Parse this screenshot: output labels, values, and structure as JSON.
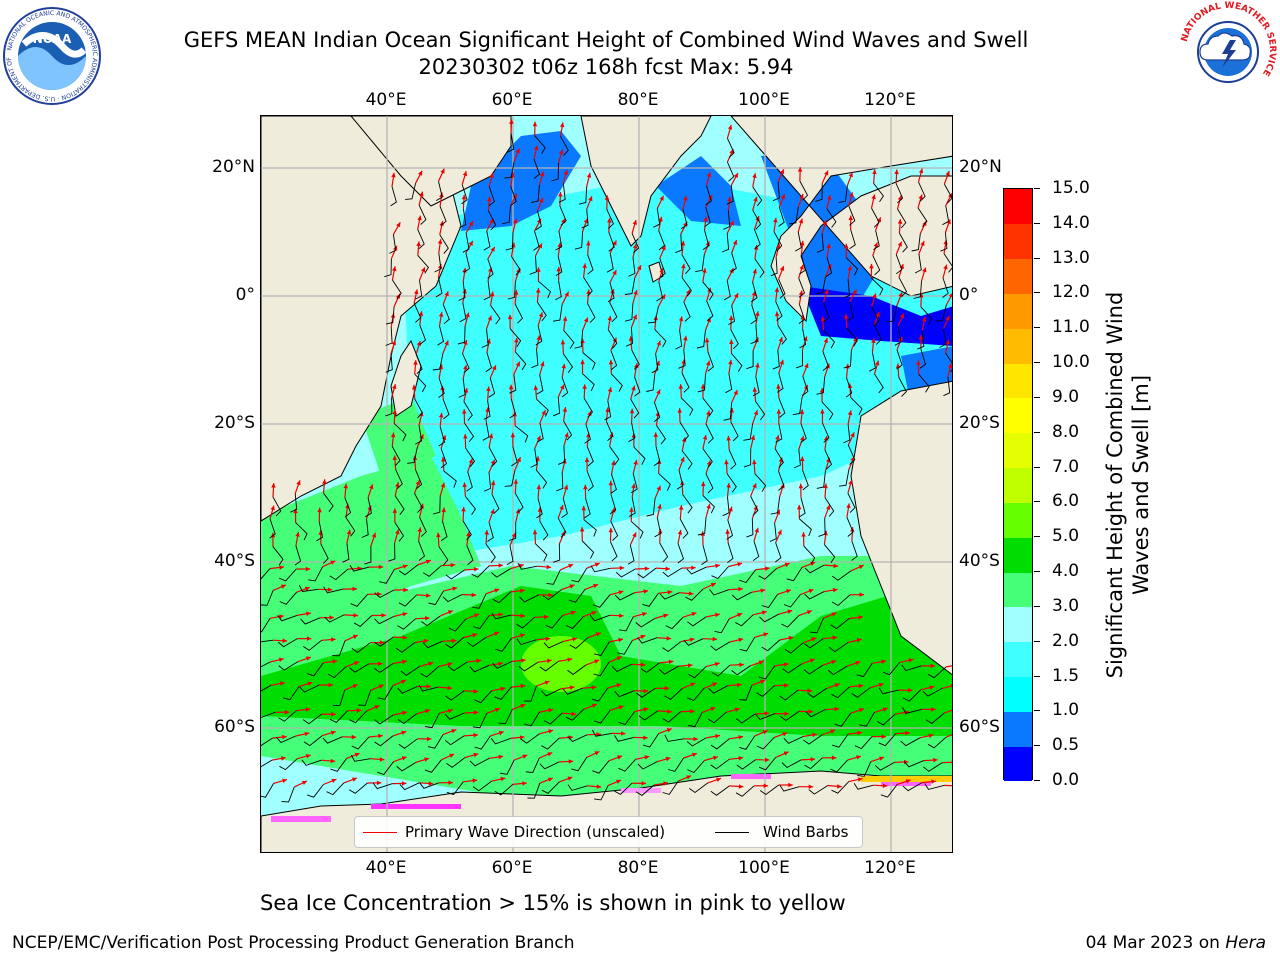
{
  "title": {
    "line1": "GEFS MEAN Indian Ocean Significant Height of Combined Wind Waves and Swell",
    "line2": "20230302 t06z 168h fcst   Max: 5.94"
  },
  "axes": {
    "lon_labels": [
      "40°E",
      "60°E",
      "80°E",
      "100°E",
      "120°E"
    ],
    "lat_labels_left": [
      "20°N",
      "0°",
      "20°S",
      "40°S",
      "60°S"
    ],
    "lat_labels_right": [
      "20°N",
      "0°",
      "20°S",
      "40°S",
      "60°S"
    ]
  },
  "chart_data": {
    "type": "heatmap",
    "title": "GEFS MEAN Indian Ocean Significant Height of Combined Wind Waves and Swell",
    "max_value": 5.94,
    "lon_ticks": [
      40,
      60,
      80,
      100,
      120
    ],
    "lat_ticks": [
      20,
      0,
      -20,
      -40,
      -60
    ],
    "colorbar": {
      "label": "Significant Height of Combined Wind Waves and Swell [m]",
      "levels": [
        0.0,
        0.5,
        1.0,
        1.5,
        2.0,
        3.0,
        4.0,
        5.0,
        6.0,
        7.0,
        8.0,
        9.0,
        10.0,
        11.0,
        12.0,
        13.0,
        14.0,
        15.0
      ],
      "level_labels": [
        "0.0",
        "0.5",
        "1.0",
        "1.5",
        "2.0",
        "3.0",
        "4.0",
        "5.0",
        "6.0",
        "7.0",
        "8.0",
        "9.0",
        "10.0",
        "11.0",
        "12.0",
        "13.0",
        "14.0",
        "15.0"
      ],
      "colors": [
        "#0000ff",
        "#0a78ff",
        "#00ffff",
        "#40ffff",
        "#a0ffff",
        "#44ff77",
        "#00dd00",
        "#66ff00",
        "#c0ff00",
        "#e6ff00",
        "#ffff00",
        "#ffe600",
        "#ffbb00",
        "#ff9900",
        "#ff6600",
        "#ff3300",
        "#ff0000"
      ]
    },
    "legend": [
      "Primary Wave Direction (unscaled)",
      "Wind Barbs"
    ]
  },
  "colors": {
    "land": "#efecdc",
    "wave_arrow": "#ee0000",
    "wind_barb": "#000000",
    "grid": "#b4b4b4"
  },
  "legend": {
    "wave_direction": "Primary Wave Direction (unscaled)",
    "wind_barbs": "Wind Barbs"
  },
  "caption": "Sea Ice Concentration > 15% is shown in pink to yellow",
  "footer": {
    "left": "NCEP/EMC/Verification Post Processing Product Generation Branch",
    "right_date": "04 Mar 2023 on",
    "right_host": "Hera"
  },
  "logos": {
    "noaa_text": "NOAA",
    "noaa_ring": "NATIONAL OCEANIC AND ATMOSPHERIC ADMINISTRATION · U.S. DEPARTMENT OF COMMERCE",
    "nws_ring": "NATIONAL WEATHER SERVICE"
  }
}
